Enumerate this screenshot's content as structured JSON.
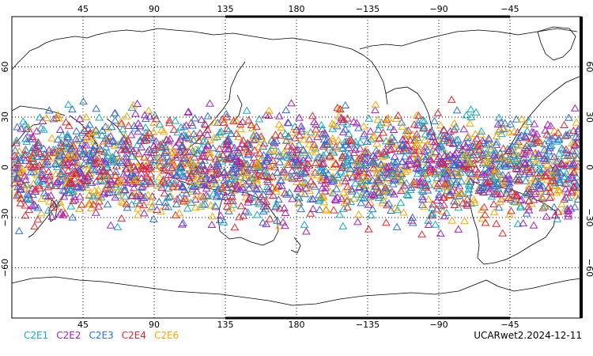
{
  "map": {
    "projection": "cylindrical-equidistant",
    "lon_range": [
      0,
      360
    ],
    "lat_range": [
      -90,
      90
    ],
    "grid": true,
    "grid_style": "dotted",
    "lon_ticks": [
      45,
      90,
      135,
      180,
      225,
      270,
      315
    ],
    "lon_tick_labels": [
      "45",
      "90",
      "135",
      "180",
      "−135",
      "−90",
      "−45"
    ],
    "lat_ticks": [
      60,
      30,
      0,
      -30,
      -60
    ],
    "lat_tick_labels_left": [
      "60",
      "30",
      "0",
      "−30",
      "−60"
    ],
    "lat_tick_labels_right": [
      "60",
      "30",
      "0",
      "−30",
      "−60"
    ],
    "marker": "open-triangle",
    "observation_lat_band": [
      -45,
      45
    ]
  },
  "legend": {
    "items": [
      {
        "label": "C2E1",
        "color": "#17a8c4"
      },
      {
        "label": "C2E2",
        "color": "#a020c0"
      },
      {
        "label": "C2E3",
        "color": "#2a6fd6"
      },
      {
        "label": "C2E4",
        "color": "#e0282e"
      },
      {
        "label": "C2E6",
        "color": "#f5a800"
      }
    ]
  },
  "stamp": "UCARwet2.2024-12-11"
}
